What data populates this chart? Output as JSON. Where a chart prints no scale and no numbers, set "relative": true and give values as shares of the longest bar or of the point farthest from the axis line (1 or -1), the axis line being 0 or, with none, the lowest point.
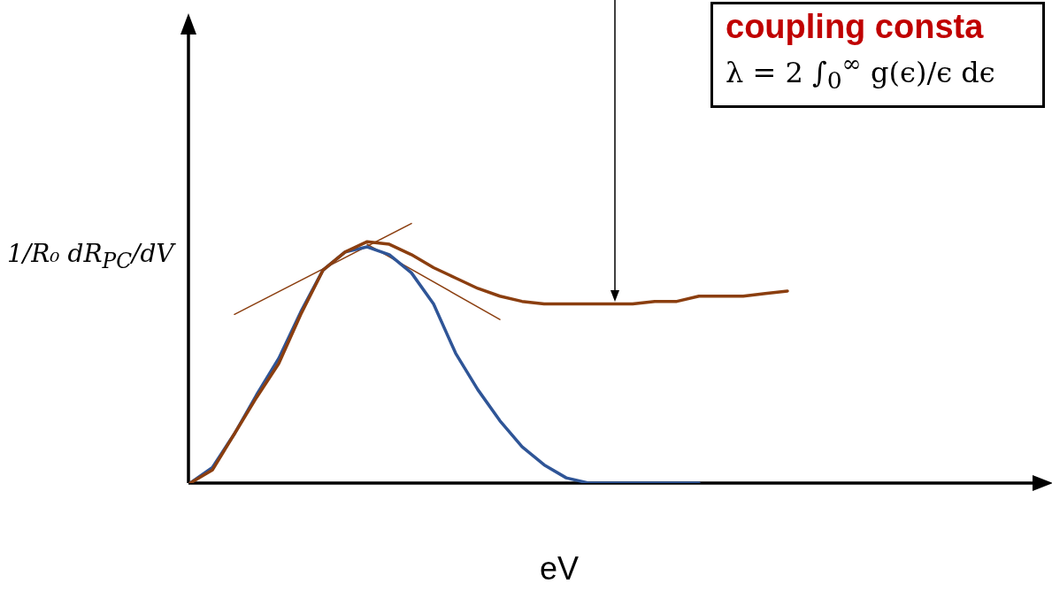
{
  "chart_data": {
    "type": "line",
    "relative": true,
    "marker": "none",
    "xlabel": "eV",
    "ylabel": "1/R₀ dR$_{PC}$/dV",
    "annotations": [
      "coupling consta",
      "λ = 2 ∫$_{0}$$^{∞}$ g(ϵ)/ϵ dϵ"
    ],
    "categories": [
      null,
      null,
      null,
      null,
      null,
      null,
      null,
      null,
      null,
      null,
      null,
      null,
      null,
      null,
      null,
      null,
      null,
      null,
      null,
      null,
      null,
      null,
      null,
      null,
      null,
      null,
      null,
      null,
      null,
      null,
      null,
      null,
      null,
      null,
      null,
      null,
      null,
      null,
      null
    ],
    "series": [
      {
        "color": "#8b3e0f",
        "values": [
          0,
          0.05,
          0.19,
          0.33,
          0.46,
          0.65,
          0.82,
          0.89,
          0.93,
          0.92,
          0.88,
          0.83,
          0.79,
          0.75,
          0.72,
          0.7,
          0.69,
          0.69,
          0.69,
          0.69,
          0.69,
          0.7,
          0.7,
          0.72,
          0.72,
          0.72,
          0.73,
          0.74,
          null,
          null,
          null,
          null,
          null,
          null,
          null,
          null,
          null,
          null,
          null
        ]
      },
      {
        "color": "#2f5597",
        "values": [
          0,
          0.06,
          0.19,
          0.34,
          0.48,
          0.66,
          0.82,
          0.89,
          0.91,
          0.88,
          0.81,
          0.69,
          0.5,
          0.36,
          0.24,
          0.14,
          0.07,
          0.02,
          0,
          0,
          0,
          0,
          0,
          0,
          null,
          null,
          null,
          null,
          null,
          null,
          null,
          null,
          null,
          null,
          null,
          null,
          null,
          null,
          null
        ]
      },
      {
        "color": "#8b3e0f",
        "values": [
          null,
          null,
          0.65,
          null,
          null,
          null,
          null,
          null,
          null,
          null,
          1.0,
          null,
          null,
          null,
          null,
          null,
          null,
          null,
          null,
          null,
          null,
          null,
          null,
          null,
          null,
          null,
          null,
          null,
          null,
          null,
          null,
          null,
          null,
          null,
          null,
          null,
          null,
          null,
          null
        ]
      },
      {
        "color": "#8b3e0f",
        "values": [
          null,
          null,
          null,
          null,
          null,
          null,
          null,
          null,
          0.92,
          null,
          null,
          null,
          null,
          null,
          0.63,
          null,
          null,
          null,
          null,
          null,
          null,
          null,
          null,
          null,
          null,
          null,
          null,
          null,
          null,
          null,
          null,
          null,
          null,
          null,
          null,
          null,
          null,
          null,
          null
        ]
      }
    ]
  }
}
